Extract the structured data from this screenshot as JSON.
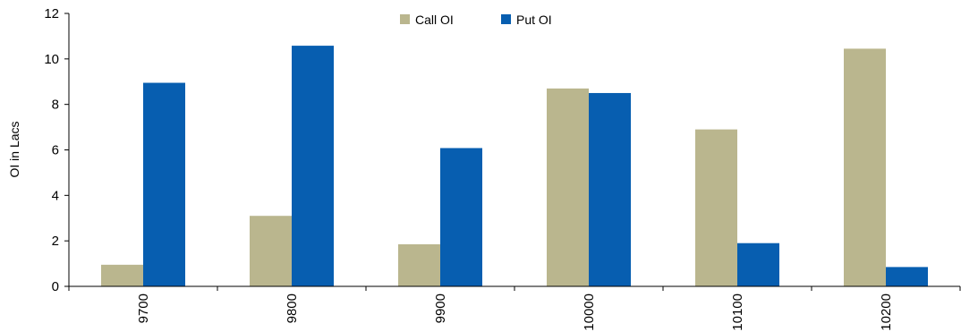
{
  "chart_data": {
    "type": "bar",
    "title": "",
    "xlabel": "",
    "ylabel": "OI in Lacs",
    "categories": [
      "9700",
      "9800",
      "9900",
      "10000",
      "10100",
      "10200"
    ],
    "series": [
      {
        "name": "Call OI",
        "color": "#BAB68E",
        "values": [
          0.95,
          3.1,
          1.85,
          8.7,
          6.9,
          10.45
        ]
      },
      {
        "name": "Put OI",
        "color": "#075EB0",
        "values": [
          8.95,
          10.58,
          6.08,
          8.5,
          1.9,
          0.85
        ]
      }
    ],
    "ylim": [
      0,
      12
    ],
    "yticks": [
      0,
      2,
      4,
      6,
      8,
      10,
      12
    ],
    "grid": false,
    "legend": "top-center"
  }
}
